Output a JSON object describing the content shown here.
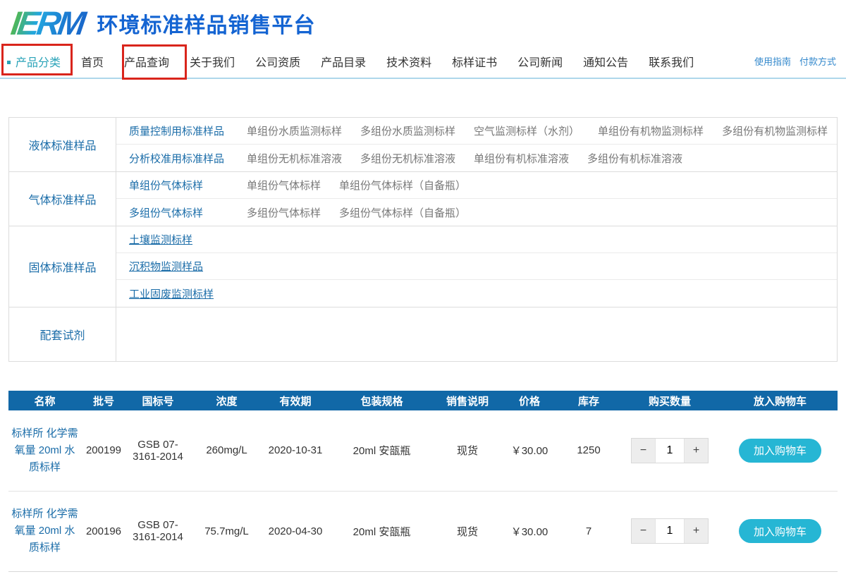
{
  "brand": {
    "logo_text": "IERM",
    "title": "环境标准样品销售平台"
  },
  "nav": {
    "active_item": "产品分类",
    "items": [
      "首页",
      "产品查询",
      "关于我们",
      "公司资质",
      "产品目录",
      "技术资料",
      "标样证书",
      "公司新闻",
      "通知公告",
      "联系我们"
    ],
    "utility_links": [
      "使用指南",
      "付款方式"
    ]
  },
  "categories": [
    {
      "name": "液体标准样品",
      "rows": [
        {
          "label": "质量控制用标准样品",
          "underline": false,
          "tall": false,
          "links": [
            "单组份水质监测标样",
            "多组份水质监测标样",
            "空气监测标样（水剂）",
            "单组份有机物监测标样",
            "多组份有机物监测标样"
          ]
        },
        {
          "label": "分析校准用标准样品",
          "underline": false,
          "tall": false,
          "links": [
            "单组份无机标准溶液",
            "多组份无机标准溶液",
            "单组份有机标准溶液",
            "多组份有机标准溶液"
          ]
        }
      ]
    },
    {
      "name": "气体标准样品",
      "rows": [
        {
          "label": "单组份气体标样",
          "underline": false,
          "tall": false,
          "links": [
            "单组份气体标样",
            "单组份气体标样（自备瓶）"
          ]
        },
        {
          "label": "多组份气体标样",
          "underline": false,
          "tall": false,
          "links": [
            "多组份气体标样",
            "多组份气体标样（自备瓶）"
          ]
        }
      ]
    },
    {
      "name": "固体标准样品",
      "rows": [
        {
          "label": "土壤监测标样",
          "underline": true,
          "tall": false,
          "links": []
        },
        {
          "label": "沉积物监测样品",
          "underline": true,
          "tall": false,
          "links": []
        },
        {
          "label": "工业固废监测标样",
          "underline": true,
          "tall": false,
          "links": []
        }
      ]
    },
    {
      "name": "配套试剂",
      "rows": [
        {
          "label": "",
          "underline": false,
          "tall": true,
          "links": []
        }
      ]
    }
  ],
  "product_table": {
    "headers": [
      "名称",
      "批号",
      "国标号",
      "浓度",
      "有效期",
      "包装规格",
      "销售说明",
      "价格",
      "库存",
      "购买数量",
      "放入购物车"
    ],
    "rows": [
      {
        "name": "标样所 化学需氧量 20ml 水质标样",
        "batch": "200199",
        "gsb": "GSB 07-3161-2014",
        "concentration": "260mg/L",
        "expiry": "2020-10-31",
        "package": "20ml 安瓿瓶",
        "sale_note": "现货",
        "price": "￥30.00",
        "stock": "1250",
        "quantity": "1"
      },
      {
        "name": "标样所 化学需氧量 20ml 水质标样",
        "batch": "200196",
        "gsb": "GSB 07-3161-2014",
        "concentration": "75.7mg/L",
        "expiry": "2020-04-30",
        "package": "20ml 安瓿瓶",
        "sale_note": "现货",
        "price": "￥30.00",
        "stock": "7",
        "quantity": "1"
      }
    ],
    "stepper": {
      "minus": "−",
      "plus": "+"
    },
    "add_to_cart_label": "加入购物车"
  },
  "colors": {
    "header_blue": "#1168a7",
    "accent_teal": "#26b6d4",
    "nav_active_teal": "#2aa3b8",
    "brand_blue": "#1464d2",
    "link_blue": "#1a6ca8",
    "annotation_red": "#d9251c"
  }
}
